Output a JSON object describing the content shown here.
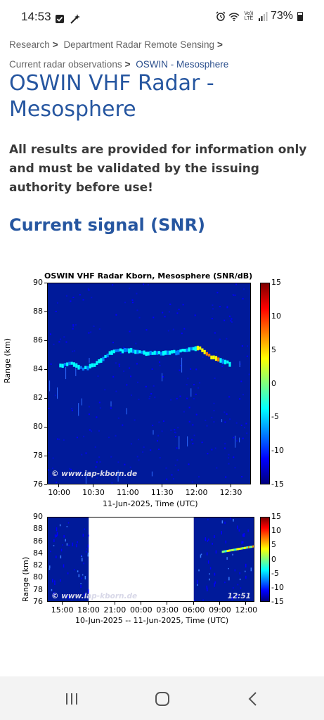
{
  "status_bar": {
    "time": "14:53",
    "left_icons": [
      "checkbox-icon",
      "magic-wand-icon"
    ],
    "battery": "73%",
    "right_icons": [
      "alarm-icon",
      "wifi-icon",
      "volte-icon",
      "signal-icon",
      "battery-icon"
    ],
    "volte_label": "Vo)) LTE"
  },
  "breadcrumb": {
    "items": [
      "Research",
      "Department Radar Remote Sensing",
      "Current radar observations"
    ],
    "current": "OSWIN - Mesosphere",
    "separator": ">"
  },
  "page_title": "OSWIN VHF Radar - Mesosphere",
  "disclaimer": "All results are provided for information only and must be validated by the issuing authority before use!",
  "section_title": "Current signal (SNR)",
  "chart_data": [
    {
      "type": "heatmap",
      "title": "OSWIN VHF Radar Kborn, Mesosphere (SNR/dB)",
      "xlabel": "11-Jun-2025, Time (UTC)",
      "ylabel": "Range (km)",
      "x_ticks": [
        "10:00",
        "10:30",
        "11:00",
        "11:30",
        "12:00",
        "12:30"
      ],
      "y_ticks": [
        76,
        78,
        80,
        82,
        84,
        86,
        88,
        90
      ],
      "ylim": [
        76,
        90
      ],
      "colorbar_ticks": [
        15,
        10,
        5,
        0,
        -5,
        -10,
        -15
      ],
      "colorbar_range": [
        -15,
        15
      ],
      "watermark": "© www.iap-kborn.de",
      "echo_layer": {
        "x": [
          "10:00",
          "10:10",
          "10:20",
          "10:30",
          "10:45",
          "11:00",
          "11:15",
          "11:30",
          "11:45",
          "12:00",
          "12:10",
          "12:20",
          "12:30"
        ],
        "y": [
          84.2,
          84.4,
          84.0,
          84.3,
          85.2,
          85.3,
          85.1,
          85.1,
          85.2,
          85.5,
          84.9,
          84.6,
          84.3
        ]
      }
    },
    {
      "type": "heatmap",
      "xlabel": "10-Jun-2025 -- 11-Jun-2025, Time (UTC)",
      "ylabel": "Range (km)",
      "x_ticks": [
        "15:00",
        "18:00",
        "21:00",
        "00:00",
        "03:00",
        "06:00",
        "09:00",
        "12:00"
      ],
      "y_ticks": [
        76,
        78,
        80,
        82,
        84,
        86,
        88,
        90
      ],
      "ylim": [
        76,
        90
      ],
      "colorbar_ticks": [
        15,
        10,
        5,
        0,
        -5,
        -10,
        -15
      ],
      "colorbar_range": [
        -15,
        15
      ],
      "watermark": "© www.iap-kborn.de",
      "timestamp": "12:51",
      "data_gaps": [
        [
          "18:00",
          "06:00"
        ]
      ]
    }
  ],
  "nav_bar": {
    "items": [
      "recent-apps-icon",
      "home-icon",
      "back-icon"
    ]
  }
}
